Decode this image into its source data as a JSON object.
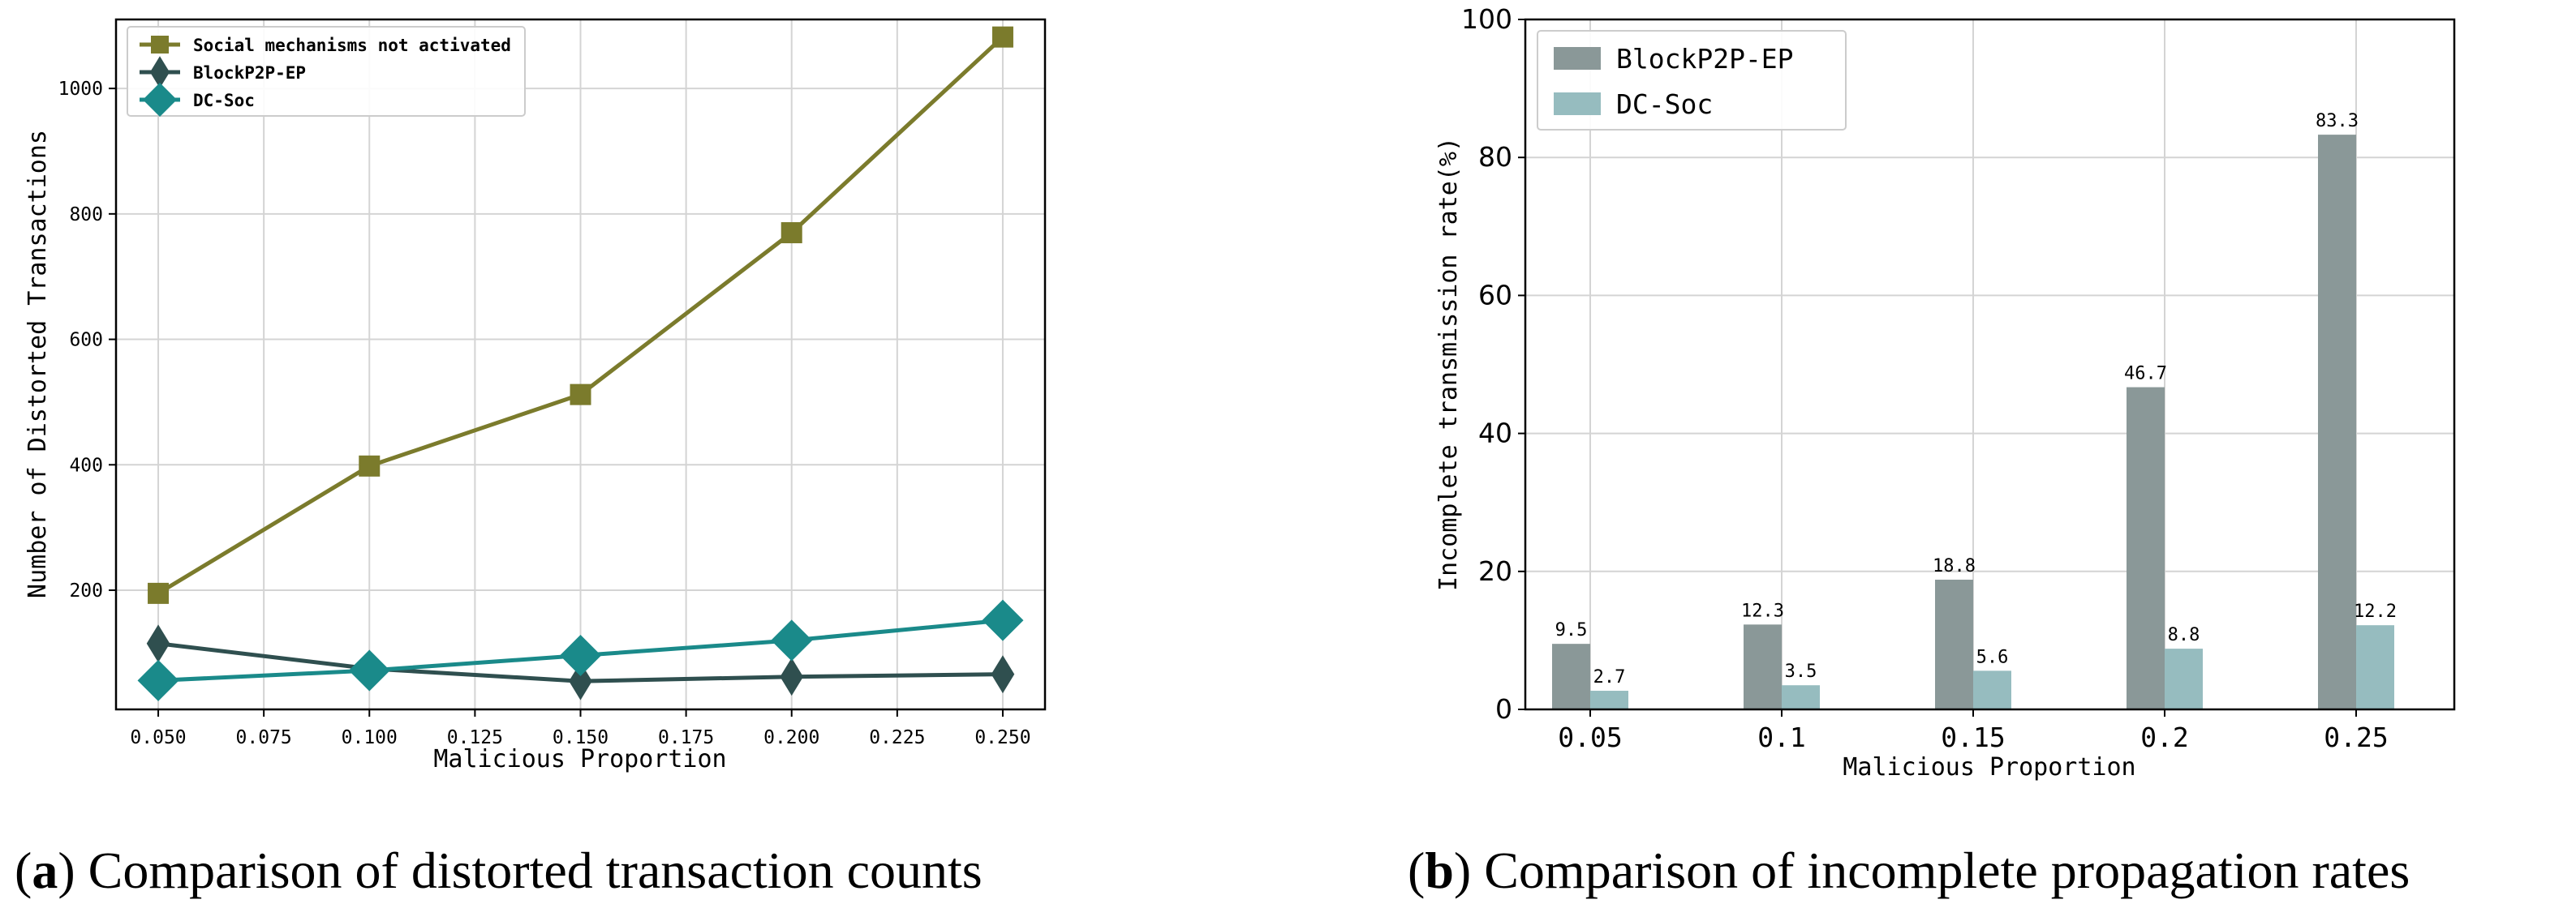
{
  "chart_data": [
    {
      "type": "line",
      "xlabel": "Malicious Proportion",
      "ylabel": "Number of Distorted Transactions",
      "xlim": [
        0.04,
        0.26
      ],
      "ylim": [
        10,
        1110
      ],
      "xticks": [
        0.05,
        0.075,
        0.1,
        0.125,
        0.15,
        0.175,
        0.2,
        0.225,
        0.25
      ],
      "xtick_labels": [
        "0.050",
        "0.075",
        "0.100",
        "0.125",
        "0.150",
        "0.175",
        "0.200",
        "0.225",
        "0.250"
      ],
      "yticks": [
        200,
        400,
        600,
        800,
        1000
      ],
      "ytick_labels": [
        "200",
        "400",
        "600",
        "800",
        "1000"
      ],
      "grid": true,
      "legend_position": "top-left",
      "x": [
        0.05,
        0.1,
        0.15,
        0.2,
        0.25
      ],
      "series": [
        {
          "name": "Social mechanisms not activated",
          "marker": "square",
          "color": "#7b7b2c",
          "values": [
            195,
            398,
            512,
            770,
            1082
          ]
        },
        {
          "name": "BlockP2P-EP",
          "marker": "thin-diamond",
          "color": "#2f4f4f",
          "values": [
            115,
            75,
            55,
            62,
            66
          ]
        },
        {
          "name": "DC-Soc",
          "marker": "diamond",
          "color": "#1a8a8a",
          "values": [
            56,
            72,
            96,
            120,
            152
          ]
        }
      ],
      "caption_letter": "a",
      "caption": "Comparison of distorted transaction counts"
    },
    {
      "type": "bar",
      "xlabel": "Malicious Proportion",
      "ylabel": "Incomplete transmission rate(%)",
      "categories": [
        "0.05",
        "0.1",
        "0.15",
        "0.2",
        "0.25"
      ],
      "ylim": [
        0,
        100
      ],
      "yticks": [
        0,
        20,
        40,
        60,
        80,
        100
      ],
      "ytick_labels": [
        "0",
        "20",
        "40",
        "60",
        "80",
        "100"
      ],
      "grid": true,
      "legend_position": "top-left",
      "series": [
        {
          "name": "BlockP2P-EP",
          "color": "#8a9898",
          "values": [
            9.5,
            12.3,
            18.8,
            46.7,
            83.3
          ],
          "labels": [
            "9.5",
            "12.3",
            "18.8",
            "46.7",
            "83.3"
          ]
        },
        {
          "name": "DC-Soc",
          "color": "#96bcbf",
          "values": [
            2.7,
            3.5,
            5.6,
            8.8,
            12.2
          ],
          "labels": [
            "2.7",
            "3.5",
            "5.6",
            "8.8",
            "12.2"
          ]
        }
      ],
      "caption_letter": "b",
      "caption": "Comparison of incomplete propagation rates"
    }
  ]
}
